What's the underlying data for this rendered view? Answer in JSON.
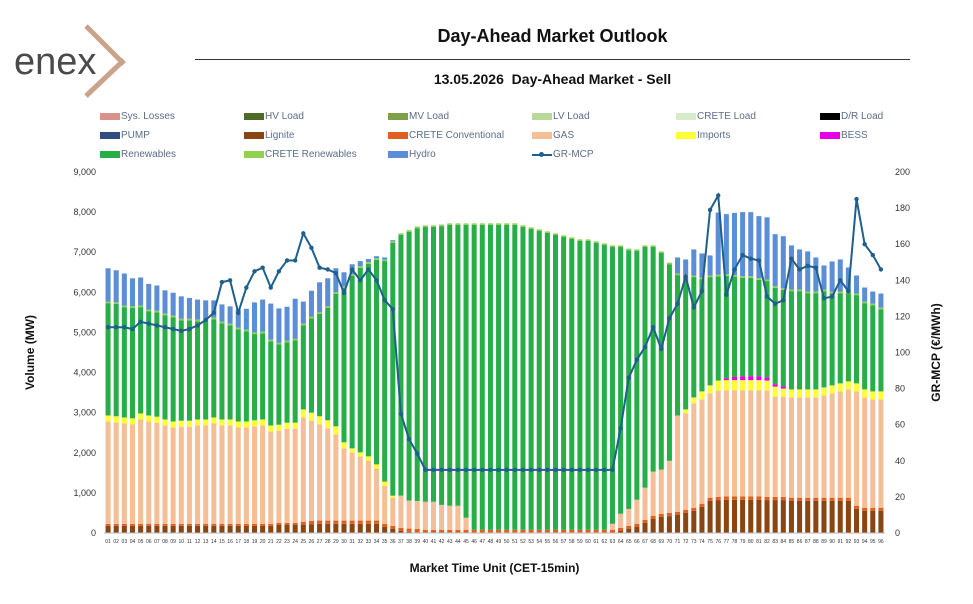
{
  "header": {
    "logo_text": "enex",
    "title": "Day-Ahead Market Outlook",
    "date": "13.05.2026",
    "subtitle": "Day-Ahead Market - Sell"
  },
  "legend": [
    {
      "name": "Sys. Losses",
      "color": "#d9918c",
      "kind": "bar"
    },
    {
      "name": "HV Load",
      "color": "#4e6b2a",
      "kind": "bar"
    },
    {
      "name": "MV Load",
      "color": "#7ea04a",
      "kind": "bar"
    },
    {
      "name": "LV Load",
      "color": "#b9d89a",
      "kind": "bar"
    },
    {
      "name": "CRETE Load",
      "color": "#d6ebc8",
      "kind": "bar"
    },
    {
      "name": "D/R Load",
      "color": "#000000",
      "kind": "bar"
    },
    {
      "name": "PUMP",
      "color": "#2f4e7e",
      "kind": "bar"
    },
    {
      "name": "Lignite",
      "color": "#8b4513",
      "kind": "bar"
    },
    {
      "name": "CRETE Conventional",
      "color": "#e2601e",
      "kind": "bar"
    },
    {
      "name": "GAS",
      "color": "#f4be96",
      "kind": "bar"
    },
    {
      "name": "Imports",
      "color": "#ffff33",
      "kind": "bar"
    },
    {
      "name": "BESS",
      "color": "#e600e6",
      "kind": "bar"
    },
    {
      "name": "Renewables",
      "color": "#27ae48",
      "kind": "bar"
    },
    {
      "name": "CRETE Renewables",
      "color": "#92d050",
      "kind": "bar"
    },
    {
      "name": "Hydro",
      "color": "#5b8ed6",
      "kind": "bar"
    },
    {
      "name": "GR-MCP",
      "color": "#1f5f8b",
      "kind": "line"
    }
  ],
  "chart_data": {
    "type": "bar",
    "stacked": true,
    "x": [
      "01",
      "02",
      "03",
      "04",
      "05",
      "06",
      "07",
      "08",
      "09",
      "10",
      "11",
      "12",
      "13",
      "14",
      "15",
      "16",
      "17",
      "18",
      "19",
      "20",
      "21",
      "22",
      "23",
      "24",
      "25",
      "26",
      "27",
      "28",
      "29",
      "30",
      "31",
      "32",
      "33",
      "34",
      "35",
      "36",
      "37",
      "38",
      "39",
      "40",
      "41",
      "42",
      "43",
      "44",
      "45",
      "46",
      "47",
      "48",
      "49",
      "50",
      "51",
      "52",
      "53",
      "54",
      "55",
      "56",
      "57",
      "58",
      "59",
      "60",
      "61",
      "62",
      "63",
      "64",
      "65",
      "66",
      "67",
      "68",
      "69",
      "70",
      "71",
      "72",
      "73",
      "74",
      "75",
      "76",
      "77",
      "78",
      "79",
      "80",
      "81",
      "82",
      "83",
      "84",
      "85",
      "86",
      "87",
      "88",
      "89",
      "90",
      "91",
      "92",
      "93",
      "94",
      "95",
      "96"
    ],
    "xlabel": "Market Time Unit (CET-15min)",
    "ylabel": "Volume (MW)",
    "y2label": "GR-MCP (€/MWh)",
    "ylim": [
      0,
      9000
    ],
    "y2lim": [
      0,
      200
    ],
    "yticks": [
      "0",
      "1,000",
      "2,000",
      "3,000",
      "4,000",
      "5,000",
      "6,000",
      "7,000",
      "8,000",
      "9,000"
    ],
    "y2ticks": [
      "0",
      "20",
      "40",
      "60",
      "80",
      "100",
      "120",
      "140",
      "160",
      "180",
      "200"
    ],
    "series": [
      {
        "name": "Lignite",
        "values": [
          180,
          180,
          180,
          180,
          180,
          180,
          180,
          180,
          180,
          180,
          180,
          180,
          180,
          180,
          180,
          180,
          180,
          180,
          180,
          180,
          180,
          200,
          200,
          200,
          200,
          220,
          230,
          230,
          230,
          230,
          230,
          230,
          230,
          230,
          150,
          100,
          50,
          30,
          20,
          0,
          0,
          0,
          0,
          0,
          0,
          0,
          0,
          0,
          0,
          0,
          0,
          0,
          0,
          0,
          0,
          0,
          0,
          0,
          0,
          0,
          0,
          0,
          0,
          50,
          100,
          150,
          250,
          350,
          400,
          420,
          450,
          500,
          550,
          650,
          800,
          820,
          830,
          830,
          830,
          830,
          830,
          820,
          820,
          820,
          800,
          800,
          800,
          800,
          800,
          800,
          800,
          800,
          600,
          550,
          550,
          550
        ]
      },
      {
        "name": "CRETE Conventional",
        "values": [
          50,
          50,
          50,
          50,
          50,
          50,
          50,
          50,
          50,
          50,
          50,
          50,
          50,
          50,
          50,
          50,
          50,
          50,
          50,
          50,
          50,
          50,
          50,
          50,
          80,
          80,
          80,
          80,
          80,
          80,
          80,
          80,
          80,
          80,
          80,
          80,
          80,
          80,
          80,
          80,
          80,
          80,
          80,
          80,
          80,
          80,
          80,
          80,
          80,
          80,
          80,
          80,
          80,
          80,
          80,
          80,
          80,
          80,
          80,
          80,
          80,
          80,
          80,
          80,
          80,
          80,
          80,
          80,
          80,
          80,
          80,
          80,
          80,
          80,
          80,
          80,
          80,
          80,
          80,
          80,
          80,
          80,
          80,
          80,
          80,
          80,
          80,
          80,
          80,
          80,
          80,
          80,
          80,
          80,
          80,
          80
        ]
      },
      {
        "name": "GAS",
        "values": [
          2550,
          2530,
          2500,
          2480,
          2600,
          2550,
          2520,
          2450,
          2400,
          2420,
          2420,
          2450,
          2450,
          2500,
          2450,
          2450,
          2400,
          2400,
          2430,
          2450,
          2300,
          2300,
          2350,
          2350,
          2600,
          2500,
          2400,
          2300,
          2150,
          1800,
          1700,
          1600,
          1500,
          1300,
          950,
          700,
          800,
          700,
          700,
          700,
          700,
          620,
          600,
          600,
          300,
          0,
          0,
          0,
          0,
          0,
          0,
          0,
          0,
          0,
          0,
          0,
          0,
          0,
          0,
          0,
          0,
          0,
          150,
          350,
          420,
          600,
          800,
          1100,
          1100,
          1300,
          2400,
          2400,
          2600,
          2600,
          2600,
          2650,
          2650,
          2650,
          2650,
          2650,
          2650,
          2650,
          2500,
          2500,
          2500,
          2500,
          2500,
          2500,
          2550,
          2600,
          2650,
          2700,
          2850,
          2750,
          2700,
          2700
        ]
      },
      {
        "name": "Imports",
        "values": [
          150,
          150,
          150,
          150,
          150,
          150,
          150,
          150,
          150,
          150,
          150,
          150,
          150,
          150,
          150,
          150,
          150,
          150,
          150,
          150,
          150,
          150,
          150,
          150,
          200,
          200,
          200,
          200,
          200,
          150,
          100,
          100,
          100,
          100,
          100,
          50,
          0,
          0,
          0,
          0,
          0,
          0,
          0,
          0,
          0,
          0,
          0,
          0,
          0,
          0,
          0,
          0,
          0,
          0,
          0,
          0,
          0,
          0,
          0,
          0,
          0,
          0,
          0,
          0,
          0,
          0,
          0,
          0,
          0,
          0,
          0,
          100,
          150,
          200,
          200,
          250,
          250,
          250,
          250,
          250,
          250,
          250,
          250,
          200,
          200,
          200,
          200,
          200,
          200,
          200,
          200,
          200,
          200,
          200,
          200,
          200
        ]
      },
      {
        "name": "BESS",
        "values": [
          0,
          0,
          0,
          0,
          0,
          0,
          0,
          0,
          0,
          0,
          0,
          0,
          0,
          0,
          0,
          0,
          0,
          0,
          0,
          0,
          0,
          0,
          0,
          0,
          0,
          0,
          0,
          0,
          0,
          0,
          0,
          0,
          0,
          0,
          0,
          0,
          0,
          0,
          0,
          0,
          0,
          0,
          0,
          0,
          0,
          0,
          0,
          0,
          0,
          0,
          0,
          0,
          0,
          0,
          0,
          0,
          0,
          0,
          0,
          0,
          0,
          0,
          0,
          0,
          0,
          0,
          0,
          0,
          0,
          0,
          0,
          0,
          0,
          0,
          0,
          0,
          50,
          80,
          100,
          100,
          100,
          80,
          60,
          60,
          0,
          0,
          0,
          0,
          0,
          0,
          0,
          0,
          0,
          0,
          0,
          0
        ]
      },
      {
        "name": "Renewables",
        "values": [
          2800,
          2800,
          2750,
          2750,
          2650,
          2600,
          2600,
          2600,
          2600,
          2500,
          2500,
          2450,
          2450,
          2450,
          2400,
          2350,
          2300,
          2250,
          2150,
          2150,
          2100,
          2000,
          2000,
          2050,
          2100,
          2350,
          2550,
          2800,
          3300,
          3850,
          4300,
          4600,
          4800,
          5100,
          5500,
          6300,
          6500,
          6700,
          6800,
          6850,
          6850,
          6950,
          7000,
          7000,
          7300,
          7600,
          7600,
          7600,
          7600,
          7600,
          7600,
          7550,
          7500,
          7450,
          7400,
          7350,
          7300,
          7250,
          7200,
          7200,
          7150,
          7100,
          6900,
          6650,
          6450,
          6200,
          6000,
          5600,
          5400,
          4900,
          3500,
          3300,
          3000,
          2800,
          2700,
          2600,
          2550,
          2500,
          2450,
          2450,
          2400,
          2400,
          2400,
          2400,
          2450,
          2450,
          2400,
          2400,
          2400,
          2300,
          2250,
          2200,
          2200,
          2150,
          2150,
          2050
        ]
      },
      {
        "name": "CRETE Renewables",
        "values": [
          40,
          40,
          40,
          40,
          40,
          40,
          40,
          40,
          40,
          40,
          40,
          40,
          40,
          40,
          40,
          40,
          40,
          40,
          40,
          40,
          40,
          40,
          40,
          40,
          40,
          40,
          40,
          40,
          40,
          40,
          40,
          40,
          40,
          40,
          40,
          40,
          40,
          40,
          40,
          40,
          40,
          40,
          40,
          40,
          40,
          40,
          40,
          40,
          40,
          40,
          40,
          40,
          40,
          40,
          40,
          40,
          40,
          40,
          40,
          40,
          40,
          40,
          40,
          40,
          40,
          40,
          40,
          40,
          40,
          40,
          40,
          40,
          40,
          40,
          40,
          40,
          40,
          40,
          40,
          40,
          40,
          40,
          40,
          40,
          40,
          40,
          40,
          40,
          40,
          40,
          40,
          40,
          40,
          40,
          40,
          40
        ]
      },
      {
        "name": "Hydro",
        "values": [
          830,
          800,
          800,
          700,
          700,
          640,
          630,
          580,
          570,
          560,
          520,
          500,
          480,
          430,
          430,
          430,
          450,
          520,
          750,
          800,
          900,
          860,
          850,
          1000,
          550,
          650,
          750,
          700,
          600,
          350,
          250,
          130,
          80,
          50,
          50,
          30,
          0,
          0,
          0,
          0,
          0,
          0,
          0,
          0,
          0,
          0,
          0,
          0,
          0,
          0,
          0,
          0,
          0,
          0,
          0,
          0,
          0,
          0,
          0,
          0,
          0,
          0,
          0,
          0,
          0,
          0,
          0,
          0,
          0,
          0,
          400,
          400,
          650,
          600,
          500,
          1550,
          1500,
          1550,
          1600,
          1600,
          1550,
          1550,
          1300,
          1300,
          1100,
          1000,
          1000,
          850,
          600,
          750,
          800,
          600,
          450,
          350,
          300,
          350
        ]
      },
      {
        "name": "GR-MCP",
        "axis": "y2",
        "values": [
          114,
          114,
          114,
          113,
          117,
          116,
          115,
          114,
          113,
          112,
          113,
          115,
          118,
          122,
          139,
          140,
          122,
          136,
          145,
          147,
          136,
          145,
          151,
          151,
          166,
          158,
          147,
          146,
          144,
          133,
          146,
          140,
          146,
          140,
          129,
          124,
          66,
          52,
          44,
          35,
          35,
          35,
          35,
          35,
          35,
          35,
          35,
          35,
          35,
          35,
          35,
          35,
          35,
          35,
          35,
          35,
          35,
          35,
          35,
          35,
          35,
          35,
          35,
          58,
          86,
          96,
          103,
          114,
          102,
          119,
          127,
          142,
          125,
          134,
          179,
          187,
          132,
          146,
          154,
          152,
          151,
          131,
          127,
          129,
          152,
          146,
          148,
          147,
          130,
          131,
          140,
          134,
          185,
          160,
          154,
          146
        ]
      }
    ]
  }
}
